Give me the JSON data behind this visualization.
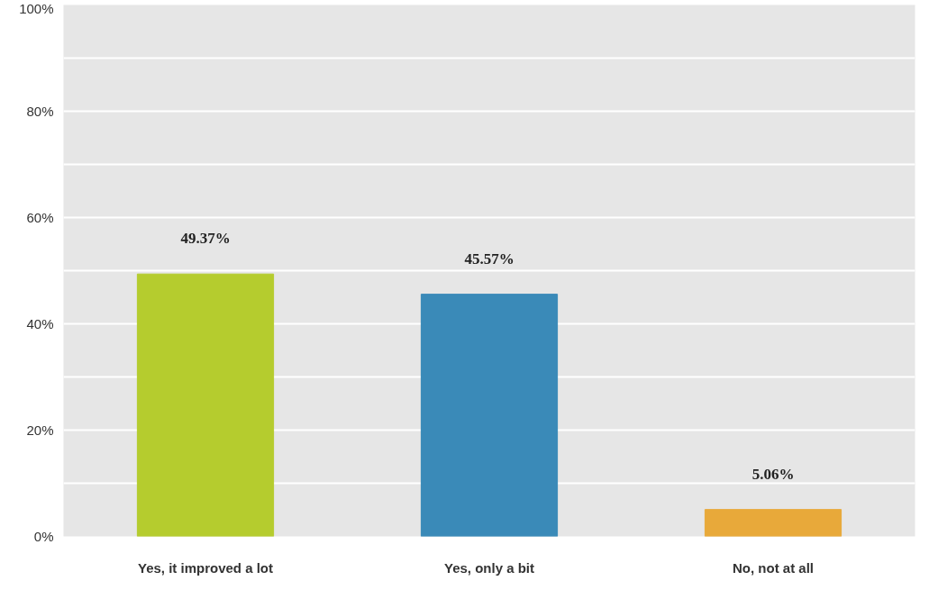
{
  "chart_data": {
    "type": "bar",
    "categories": [
      "Yes, it improved a lot",
      "Yes, only a bit",
      "No, not at all"
    ],
    "values": [
      49.37,
      45.57,
      5.06
    ],
    "colors": [
      "#b5cc2e",
      "#3a8ab8",
      "#e8a93a"
    ],
    "value_labels": [
      "49.37%",
      "45.57%",
      "5.06%"
    ],
    "ylim": [
      0,
      100
    ],
    "yticks": [
      {
        "value": 0,
        "label": "0%"
      },
      {
        "value": 10,
        "label": null
      },
      {
        "value": 20,
        "label": "20%"
      },
      {
        "value": 30,
        "label": null
      },
      {
        "value": 40,
        "label": "40%"
      },
      {
        "value": 50,
        "label": null
      },
      {
        "value": 60,
        "label": "60%"
      },
      {
        "value": 70,
        "label": null
      },
      {
        "value": 80,
        "label": "80%"
      },
      {
        "value": 90,
        "label": null
      },
      {
        "value": 100,
        "label": "100%"
      }
    ],
    "grid": "y"
  }
}
